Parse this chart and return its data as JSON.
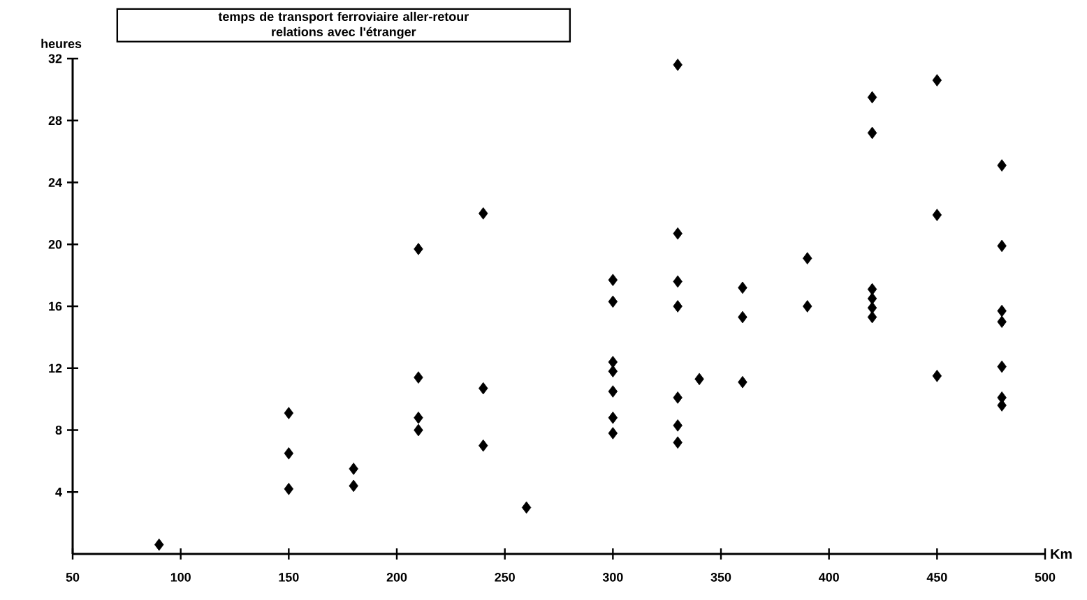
{
  "chart_data": {
    "type": "scatter",
    "title": "temps de transport ferroviaire aller-retour",
    "subtitle": "relations avec l'étranger",
    "xlabel": "Km",
    "ylabel": "heures",
    "x": [
      90,
      150,
      150,
      150,
      180,
      180,
      210,
      210,
      210,
      210,
      240,
      240,
      240,
      260,
      300,
      300,
      300,
      300,
      300,
      300,
      300,
      330,
      330,
      330,
      330,
      330,
      330,
      330,
      340,
      360,
      360,
      360,
      390,
      390,
      420,
      420,
      420,
      420,
      420,
      420,
      450,
      450,
      450,
      480,
      480,
      480,
      480,
      480,
      480,
      480
    ],
    "values": [
      0.6,
      9.1,
      6.5,
      4.2,
      5.5,
      4.4,
      19.7,
      11.4,
      8.8,
      8.0,
      22.0,
      10.7,
      7.0,
      3.0,
      17.7,
      16.3,
      12.4,
      11.8,
      10.5,
      8.8,
      7.8,
      31.6,
      20.7,
      17.6,
      16.0,
      10.1,
      8.3,
      7.2,
      11.3,
      17.2,
      15.3,
      11.1,
      19.1,
      16.0,
      29.5,
      27.2,
      17.1,
      16.5,
      15.9,
      15.3,
      30.6,
      21.9,
      11.5,
      25.1,
      19.9,
      15.7,
      15.0,
      12.1,
      10.1,
      9.6
    ],
    "color": "#000000",
    "marker": "diamond",
    "xlim": [
      50,
      500
    ],
    "ylim": [
      0,
      32
    ],
    "xticks": [
      50,
      100,
      150,
      200,
      250,
      300,
      350,
      400,
      450,
      500
    ],
    "yticks": [
      4,
      8,
      12,
      16,
      20,
      24,
      28,
      32
    ],
    "grid": false
  }
}
